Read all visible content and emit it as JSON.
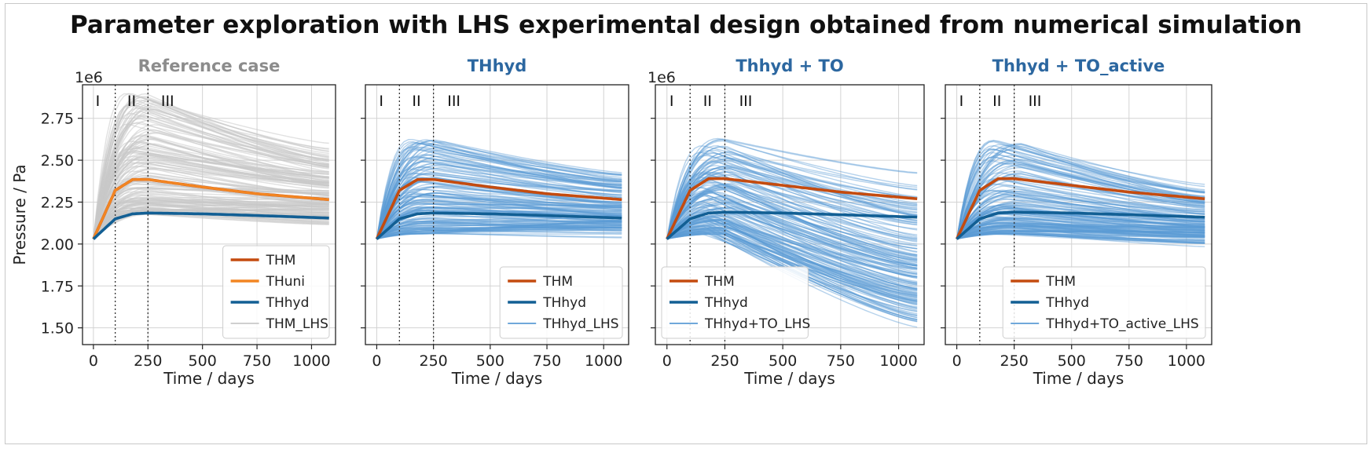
{
  "figure_title": "Parameter exploration with LHS experimental design obtained from numerical simulation",
  "chart_data": [
    {
      "type": "line",
      "title": "Reference case",
      "title_color": "#8c8c8c",
      "xlabel": "Time / days",
      "ylabel": "Pressure / Pa",
      "offset_label": "1e6",
      "xlim": [
        -50,
        1110
      ],
      "ylim": [
        1.4,
        2.95
      ],
      "xticks": [
        0,
        250,
        500,
        750,
        1000
      ],
      "yticks": [
        1.5,
        1.75,
        2.0,
        2.25,
        2.5,
        2.75
      ],
      "grid": true,
      "phases": {
        "boundaries": [
          100,
          250
        ],
        "labels": [
          "I",
          "II",
          "III"
        ]
      },
      "series": [
        {
          "name": "THM",
          "color": "#c44b0f",
          "x": [
            0,
            100,
            180,
            250,
            500,
            750,
            1080
          ],
          "y": [
            2.03,
            2.32,
            2.385,
            2.385,
            2.34,
            2.3,
            2.265
          ]
        },
        {
          "name": "THuni",
          "color": "#f28522",
          "x": [
            0,
            100,
            180,
            250,
            500,
            750,
            1080
          ],
          "y": [
            2.03,
            2.32,
            2.385,
            2.385,
            2.34,
            2.3,
            2.265
          ]
        },
        {
          "name": "THhyd",
          "color": "#125f94",
          "x": [
            0,
            100,
            180,
            250,
            500,
            750,
            1080
          ],
          "y": [
            2.03,
            2.15,
            2.18,
            2.185,
            2.18,
            2.17,
            2.155
          ]
        },
        {
          "name": "THM_LHS",
          "color": "#c8c8c8",
          "ensemble": {
            "peak_range": [
              2.18,
              2.9
            ],
            "end_range": [
              2.11,
              2.61
            ]
          }
        }
      ],
      "legend": {
        "placement": "lower-right",
        "entries": [
          "THM",
          "THuni",
          "THhyd",
          "THM_LHS"
        ]
      }
    },
    {
      "type": "line",
      "title": "THhyd",
      "title_color": "#2c67a0",
      "xlabel": "Time / days",
      "xlim": [
        -50,
        1110
      ],
      "ylim": [
        1.4,
        2.95
      ],
      "xticks": [
        0,
        250,
        500,
        750,
        1000
      ],
      "grid": true,
      "phases": {
        "boundaries": [
          100,
          250
        ],
        "labels": [
          "I",
          "II",
          "III"
        ]
      },
      "series": [
        {
          "name": "THM",
          "color": "#c44b0f",
          "x": [
            0,
            100,
            180,
            250,
            500,
            750,
            1080
          ],
          "y": [
            2.03,
            2.32,
            2.385,
            2.385,
            2.34,
            2.3,
            2.265
          ]
        },
        {
          "name": "THhyd",
          "color": "#125f94",
          "x": [
            0,
            100,
            180,
            250,
            500,
            750,
            1080
          ],
          "y": [
            2.03,
            2.15,
            2.18,
            2.185,
            2.18,
            2.17,
            2.155
          ]
        },
        {
          "name": "THhyd_LHS",
          "color": "#5b9bd5",
          "ensemble": {
            "peak_range": [
              2.06,
              2.63
            ],
            "end_range": [
              2.03,
              2.45
            ]
          }
        }
      ],
      "legend": {
        "placement": "lower-right",
        "entries": [
          "THM",
          "THhyd",
          "THhyd_LHS"
        ]
      }
    },
    {
      "type": "line",
      "title": "Thhyd + TO",
      "title_color": "#2c67a0",
      "xlabel": "Time / days",
      "offset_label": "1e6",
      "xlim": [
        -50,
        1110
      ],
      "ylim": [
        1.4,
        2.95
      ],
      "xticks": [
        0,
        250,
        500,
        750,
        1000
      ],
      "grid": true,
      "phases": {
        "boundaries": [
          100,
          250
        ],
        "labels": [
          "I",
          "II",
          "III"
        ]
      },
      "series": [
        {
          "name": "THM",
          "color": "#c44b0f",
          "x": [
            0,
            100,
            180,
            250,
            500,
            750,
            1080
          ],
          "y": [
            2.03,
            2.32,
            2.39,
            2.39,
            2.35,
            2.31,
            2.27
          ]
        },
        {
          "name": "THhyd",
          "color": "#125f94",
          "x": [
            0,
            100,
            180,
            250,
            500,
            750,
            1080
          ],
          "y": [
            2.03,
            2.15,
            2.185,
            2.19,
            2.185,
            2.175,
            2.16
          ]
        },
        {
          "name": "THhyd+TO_LHS",
          "color": "#5b9bd5",
          "ensemble": {
            "peak_range": [
              2.06,
              2.63
            ],
            "end_range": [
              1.48,
              2.45
            ]
          }
        }
      ],
      "legend": {
        "placement": "lower-left",
        "entries": [
          "THM",
          "THhyd",
          "THhyd+TO_LHS"
        ]
      }
    },
    {
      "type": "line",
      "title": "Thhyd + TO_active",
      "title_color": "#2c67a0",
      "xlabel": "Time / days",
      "xlim": [
        -50,
        1110
      ],
      "ylim": [
        1.4,
        2.95
      ],
      "xticks": [
        0,
        250,
        500,
        750,
        1000
      ],
      "grid": true,
      "phases": {
        "boundaries": [
          100,
          250
        ],
        "labels": [
          "I",
          "II",
          "III"
        ]
      },
      "series": [
        {
          "name": "THM",
          "color": "#c44b0f",
          "x": [
            0,
            100,
            180,
            250,
            500,
            750,
            1080
          ],
          "y": [
            2.03,
            2.32,
            2.39,
            2.39,
            2.35,
            2.31,
            2.27
          ]
        },
        {
          "name": "THhyd",
          "color": "#125f94",
          "x": [
            0,
            100,
            180,
            250,
            500,
            750,
            1080
          ],
          "y": [
            2.03,
            2.15,
            2.185,
            2.19,
            2.185,
            2.175,
            2.16
          ]
        },
        {
          "name": "THhyd+TO_active_LHS",
          "color": "#5b9bd5",
          "ensemble": {
            "peak_range": [
              2.06,
              2.62
            ],
            "end_range": [
              1.98,
              2.36
            ]
          }
        }
      ],
      "legend": {
        "placement": "lower-right",
        "entries": [
          "THM",
          "THhyd",
          "THhyd+TO_active_LHS"
        ]
      }
    }
  ]
}
